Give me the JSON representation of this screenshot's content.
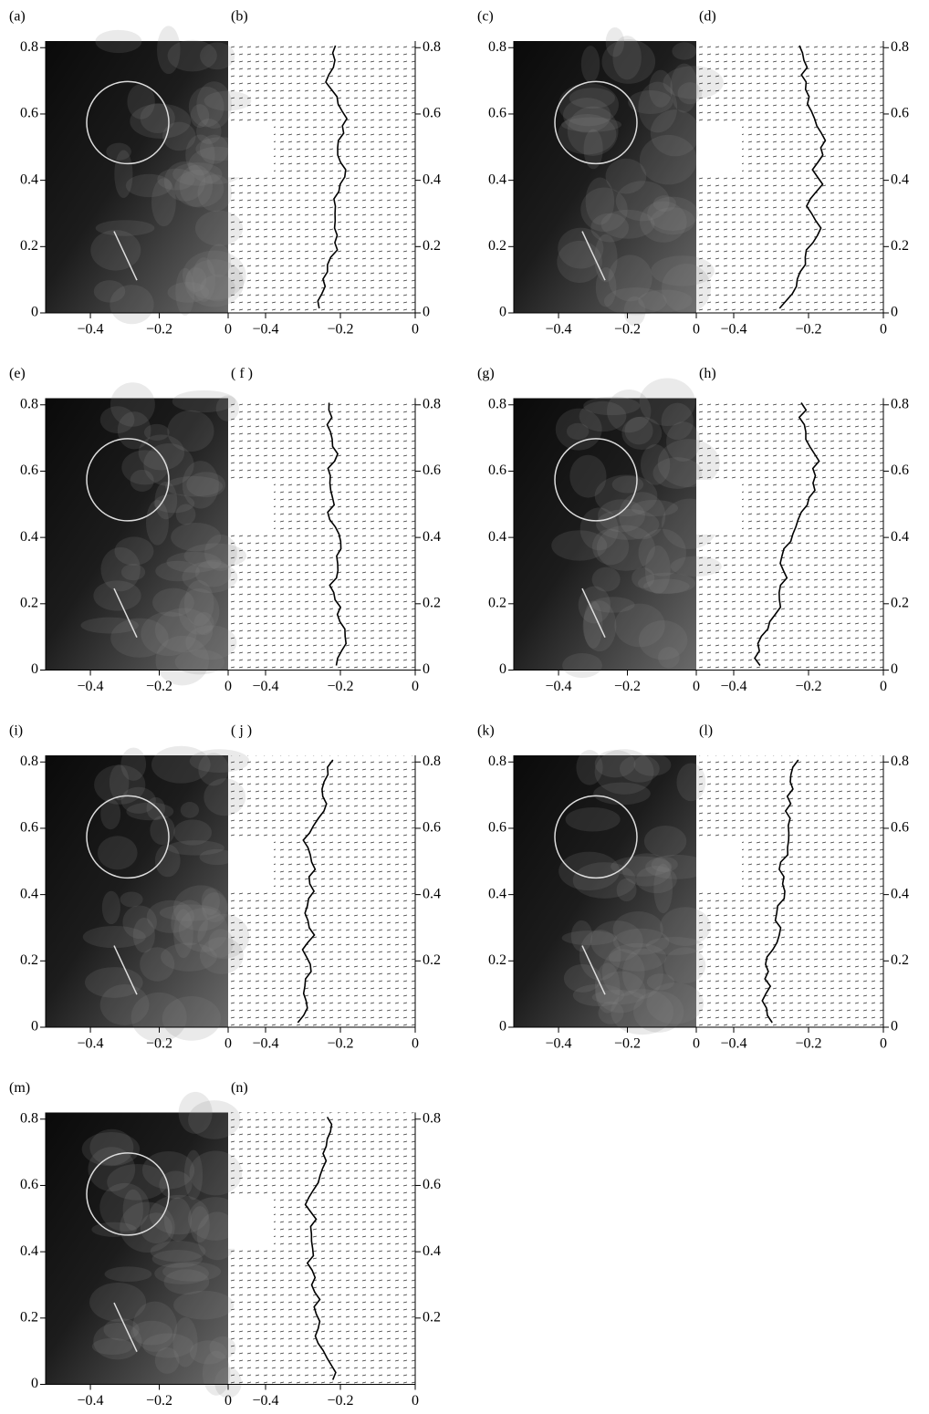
{
  "chart_data": [
    {
      "type": "image",
      "label": "(a)",
      "xlim": [
        -0.53,
        0
      ],
      "ylim": [
        0,
        0.82
      ],
      "xticks": [
        {
          "value": -0.4,
          "label": "−0.4"
        },
        {
          "value": -0.2,
          "label": "−0.2"
        },
        0
      ],
      "yticks": [
        0,
        0.2,
        0.4,
        0.6,
        0.8
      ]
    },
    {
      "type": "vector",
      "label": "(b)",
      "xlim": [
        -0.5,
        0
      ],
      "ylim": [
        0,
        0.82
      ],
      "xticks": [
        {
          "value": -0.4,
          "label": "−0.4"
        },
        {
          "value": -0.2,
          "label": "−0.2"
        },
        0
      ],
      "yticks": [
        0,
        0.2,
        0.4,
        0.6,
        0.8
      ]
    },
    {
      "type": "image",
      "label": "(c)",
      "xlim": [
        -0.53,
        0
      ],
      "ylim": [
        0,
        0.82
      ],
      "xticks": [
        {
          "value": -0.4,
          "label": "−0.4"
        },
        {
          "value": -0.2,
          "label": "−0.2"
        },
        0
      ],
      "yticks": [
        0,
        0.2,
        0.4,
        0.6,
        0.8
      ]
    },
    {
      "type": "vector",
      "label": "(d)",
      "xlim": [
        -0.5,
        0
      ],
      "ylim": [
        0,
        0.82
      ],
      "xticks": [
        {
          "value": -0.4,
          "label": "−0.4"
        },
        {
          "value": -0.2,
          "label": "−0.2"
        },
        0
      ],
      "yticks": [
        0,
        0.2,
        0.4,
        0.6,
        0.8
      ]
    },
    {
      "type": "image",
      "label": "(e)",
      "xlim": [
        -0.53,
        0
      ],
      "ylim": [
        0,
        0.82
      ],
      "xticks": [
        {
          "value": -0.4,
          "label": "−0.4"
        },
        {
          "value": -0.2,
          "label": "−0.2"
        },
        0
      ],
      "yticks": [
        0,
        0.2,
        0.4,
        0.6,
        0.8
      ]
    },
    {
      "type": "vector",
      "label": "( f )",
      "xlim": [
        -0.5,
        0
      ],
      "ylim": [
        0,
        0.82
      ],
      "xticks": [
        {
          "value": -0.4,
          "label": "−0.4"
        },
        {
          "value": -0.2,
          "label": "−0.2"
        },
        0
      ],
      "yticks": [
        0,
        0.2,
        0.4,
        0.6,
        0.8
      ]
    },
    {
      "type": "image",
      "label": "(g)",
      "xlim": [
        -0.53,
        0
      ],
      "ylim": [
        0,
        0.82
      ],
      "xticks": [
        {
          "value": -0.4,
          "label": "−0.4"
        },
        {
          "value": -0.2,
          "label": "−0.2"
        },
        0
      ],
      "yticks": [
        0,
        0.2,
        0.4,
        0.6,
        0.8
      ]
    },
    {
      "type": "vector",
      "label": "(h)",
      "xlim": [
        -0.5,
        0
      ],
      "ylim": [
        0,
        0.82
      ],
      "xticks": [
        {
          "value": -0.4,
          "label": "−0.4"
        },
        {
          "value": -0.2,
          "label": "−0.2"
        },
        0
      ],
      "yticks": [
        0,
        0.2,
        0.4,
        0.6,
        0.8
      ]
    },
    {
      "type": "image",
      "label": "(i)",
      "xlim": [
        -0.53,
        0
      ],
      "ylim": [
        0,
        0.82
      ],
      "xticks": [
        {
          "value": -0.4,
          "label": "−0.4"
        },
        {
          "value": -0.2,
          "label": "−0.2"
        },
        0
      ],
      "yticks": [
        0,
        0.2,
        0.4,
        0.6,
        0.8
      ]
    },
    {
      "type": "vector",
      "label": "( j )",
      "xlim": [
        -0.5,
        0
      ],
      "ylim": [
        0,
        0.82
      ],
      "xticks": [
        {
          "value": -0.4,
          "label": "−0.4"
        },
        {
          "value": -0.2,
          "label": "−0.2"
        },
        0
      ],
      "yticks": [
        0.2,
        0.4,
        0.6,
        0.8
      ]
    },
    {
      "type": "image",
      "label": "(k)",
      "xlim": [
        -0.53,
        0
      ],
      "ylim": [
        0,
        0.82
      ],
      "xticks": [
        {
          "value": -0.4,
          "label": "−0.4"
        },
        {
          "value": -0.2,
          "label": "−0.2"
        },
        0
      ],
      "yticks": [
        0,
        0.2,
        0.4,
        0.6,
        0.8
      ]
    },
    {
      "type": "vector",
      "label": "(l)",
      "xlim": [
        -0.5,
        0
      ],
      "ylim": [
        0,
        0.82
      ],
      "xticks": [
        {
          "value": -0.4,
          "label": "−0.4"
        },
        {
          "value": -0.2,
          "label": "−0.2"
        },
        0
      ],
      "yticks": [
        0,
        0.2,
        0.4,
        0.6,
        0.8
      ]
    },
    {
      "type": "image",
      "label": "(m)",
      "xlim": [
        -0.53,
        0
      ],
      "ylim": [
        0,
        0.82
      ],
      "xticks": [
        {
          "value": -0.4,
          "label": "−0.4"
        },
        {
          "value": -0.2,
          "label": "−0.2"
        },
        0
      ],
      "yticks": [
        0,
        0.2,
        0.4,
        0.6,
        0.8
      ]
    },
    {
      "type": "vector",
      "label": "(n)",
      "xlim": [
        -0.5,
        0
      ],
      "ylim": [
        0,
        0.82
      ],
      "xticks": [
        {
          "value": -0.4,
          "label": "−0.4"
        },
        {
          "value": -0.2,
          "label": "−0.2"
        },
        0
      ],
      "yticks": [
        0.2,
        0.4,
        0.6,
        0.8
      ]
    }
  ]
}
